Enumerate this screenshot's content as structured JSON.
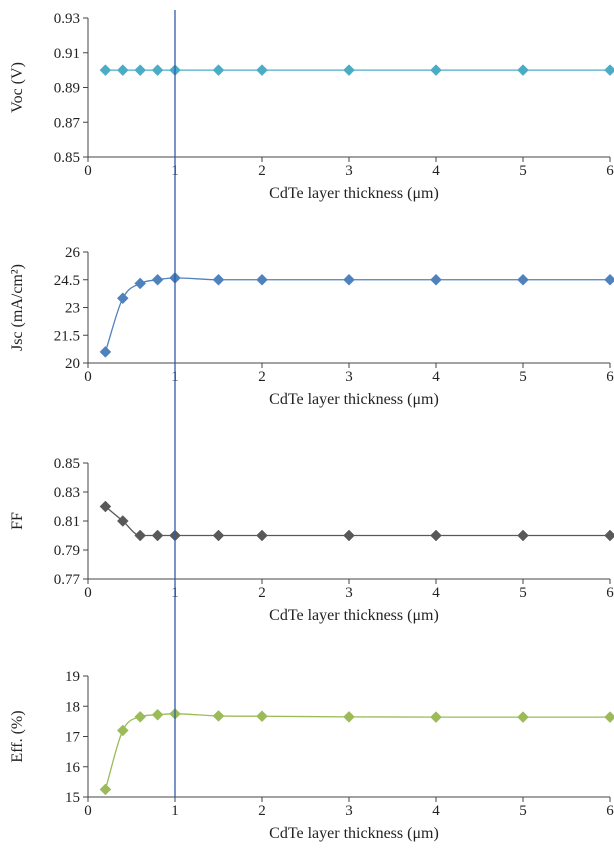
{
  "chart_data": [
    {
      "type": "line",
      "title": "",
      "xlabel": "CdTe layer thickness (μm)",
      "ylabel": "Voc (V)",
      "xlim": [
        0,
        6
      ],
      "ylim": [
        0.85,
        0.93
      ],
      "xticks": [
        "0",
        "1",
        "2",
        "3",
        "4",
        "5",
        "6"
      ],
      "yticks": [
        "0.85",
        "0.87",
        "0.89",
        "0.91",
        "0.93"
      ],
      "grid": false,
      "color": "#4bacc6",
      "series": [
        {
          "x": [
            0.2,
            0.4,
            0.6,
            0.8,
            1,
            1.5,
            2,
            3,
            4,
            5,
            6
          ],
          "values": [
            0.9,
            0.9,
            0.9,
            0.9,
            0.9,
            0.9,
            0.9,
            0.9,
            0.9,
            0.9,
            0.9
          ]
        }
      ]
    },
    {
      "type": "line",
      "title": "",
      "xlabel": "CdTe layer thickness (μm)",
      "ylabel": "Jsc (mA/cm²)",
      "xlim": [
        0,
        6
      ],
      "ylim": [
        20,
        26
      ],
      "xticks": [
        "0",
        "1",
        "2",
        "3",
        "4",
        "5",
        "6"
      ],
      "yticks": [
        "20",
        "21.5",
        "23",
        "24.5",
        "26"
      ],
      "grid": false,
      "color": "#4f81bd",
      "series": [
        {
          "x": [
            0.2,
            0.4,
            0.6,
            0.8,
            1,
            1.5,
            2,
            3,
            4,
            5,
            6
          ],
          "values": [
            20.6,
            23.5,
            24.3,
            24.5,
            24.6,
            24.5,
            24.5,
            24.5,
            24.5,
            24.5,
            24.5
          ]
        }
      ]
    },
    {
      "type": "line",
      "title": "",
      "xlabel": "CdTe layer thickness (μm)",
      "ylabel": "FF",
      "xlim": [
        0,
        6
      ],
      "ylim": [
        0.77,
        0.85
      ],
      "xticks": [
        "0",
        "1",
        "2",
        "3",
        "4",
        "5",
        "6"
      ],
      "yticks": [
        "0.77",
        "0.79",
        "0.81",
        "0.83",
        "0.85"
      ],
      "grid": false,
      "color": "#595959",
      "series": [
        {
          "x": [
            0.2,
            0.4,
            0.6,
            0.8,
            1,
            1.5,
            2,
            3,
            4,
            5,
            6
          ],
          "values": [
            0.82,
            0.81,
            0.8,
            0.8,
            0.8,
            0.8,
            0.8,
            0.8,
            0.8,
            0.8,
            0.8
          ]
        }
      ]
    },
    {
      "type": "line",
      "title": "",
      "xlabel": "CdTe layer thickness (μm)",
      "ylabel": "Eff. (%)",
      "xlim": [
        0,
        6
      ],
      "ylim": [
        15,
        19
      ],
      "xticks": [
        "0",
        "1",
        "2",
        "3",
        "4",
        "5",
        "6"
      ],
      "yticks": [
        "15",
        "16",
        "17",
        "18",
        "19"
      ],
      "grid": false,
      "color": "#9bbb59",
      "series": [
        {
          "x": [
            0.2,
            0.4,
            0.6,
            0.8,
            1,
            1.5,
            2,
            3,
            4,
            5,
            6
          ],
          "values": [
            15.25,
            17.2,
            17.65,
            17.72,
            17.75,
            17.68,
            17.67,
            17.65,
            17.64,
            17.64,
            17.64
          ]
        }
      ]
    }
  ],
  "reference_line": {
    "x": 1,
    "color": "#2e5fa8"
  }
}
